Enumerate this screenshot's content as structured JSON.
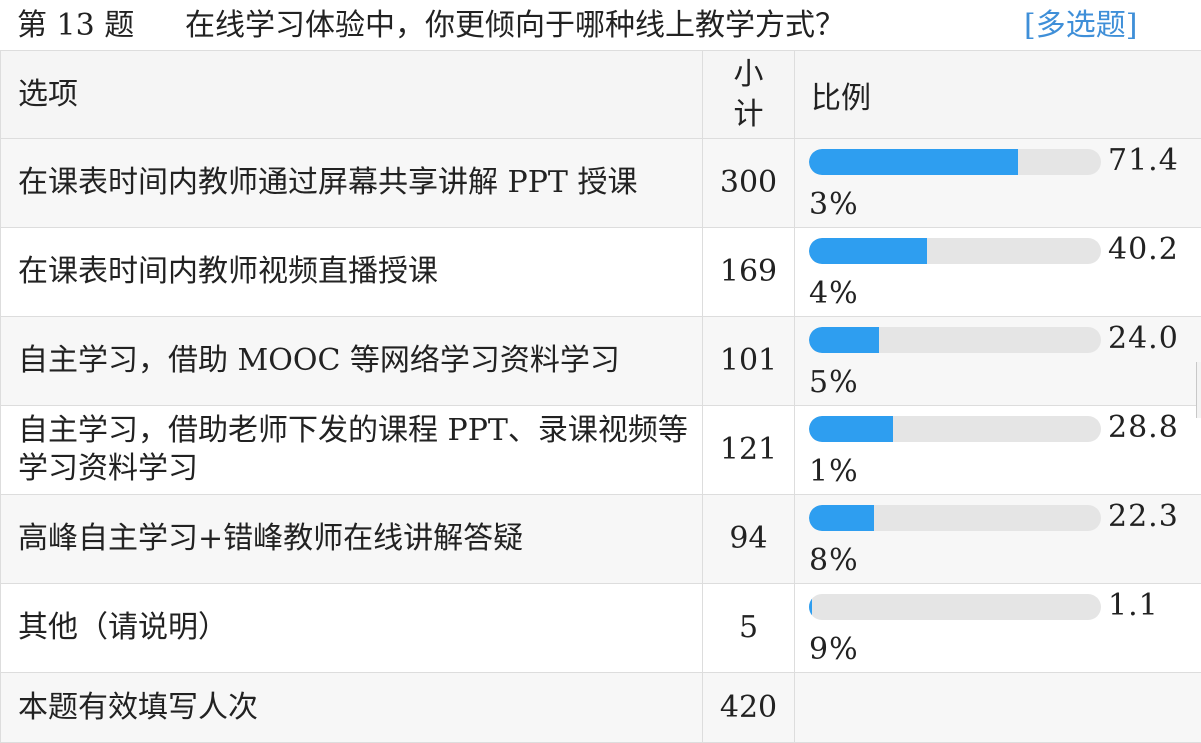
{
  "question": {
    "number_label": "第 13 题",
    "text": "在线学习体验中，你更倾向于哪种线上教学方式？",
    "type_label": "[多选题]"
  },
  "table": {
    "headers": {
      "option": "选项",
      "count_line1": "小",
      "count_line2": "计",
      "ratio": "比例"
    },
    "rows": [
      {
        "option": "在课表时间内教师通过屏幕共享讲解 PPT 授课",
        "count": "300",
        "percent_label": "71.43%",
        "percent": 71.43
      },
      {
        "option": "在课表时间内教师视频直播授课",
        "count": "169",
        "percent_label": "40.24%",
        "percent": 40.24
      },
      {
        "option": "自主学习，借助 MOOC 等网络学习资料学习",
        "count": "101",
        "percent_label": "24.05%",
        "percent": 24.05
      },
      {
        "option": "自主学习，借助老师下发的课程 PPT、录课视频等学习资料学习",
        "count": "121",
        "percent_label": "28.81%",
        "percent": 28.81
      },
      {
        "option": "高峰自主学习+错峰教师在线讲解答疑",
        "count": "94",
        "percent_label": "22.38%",
        "percent": 22.38
      },
      {
        "option": "其他（请说明）",
        "count": "5",
        "percent_label": "1.19%",
        "percent": 1.19
      }
    ],
    "total": {
      "label": "本题有效填写人次",
      "count": "420"
    }
  },
  "colors": {
    "bar_fill": "#2e9ef0",
    "bar_track": "#e5e5e5",
    "type_label": "#3f8fd8"
  }
}
